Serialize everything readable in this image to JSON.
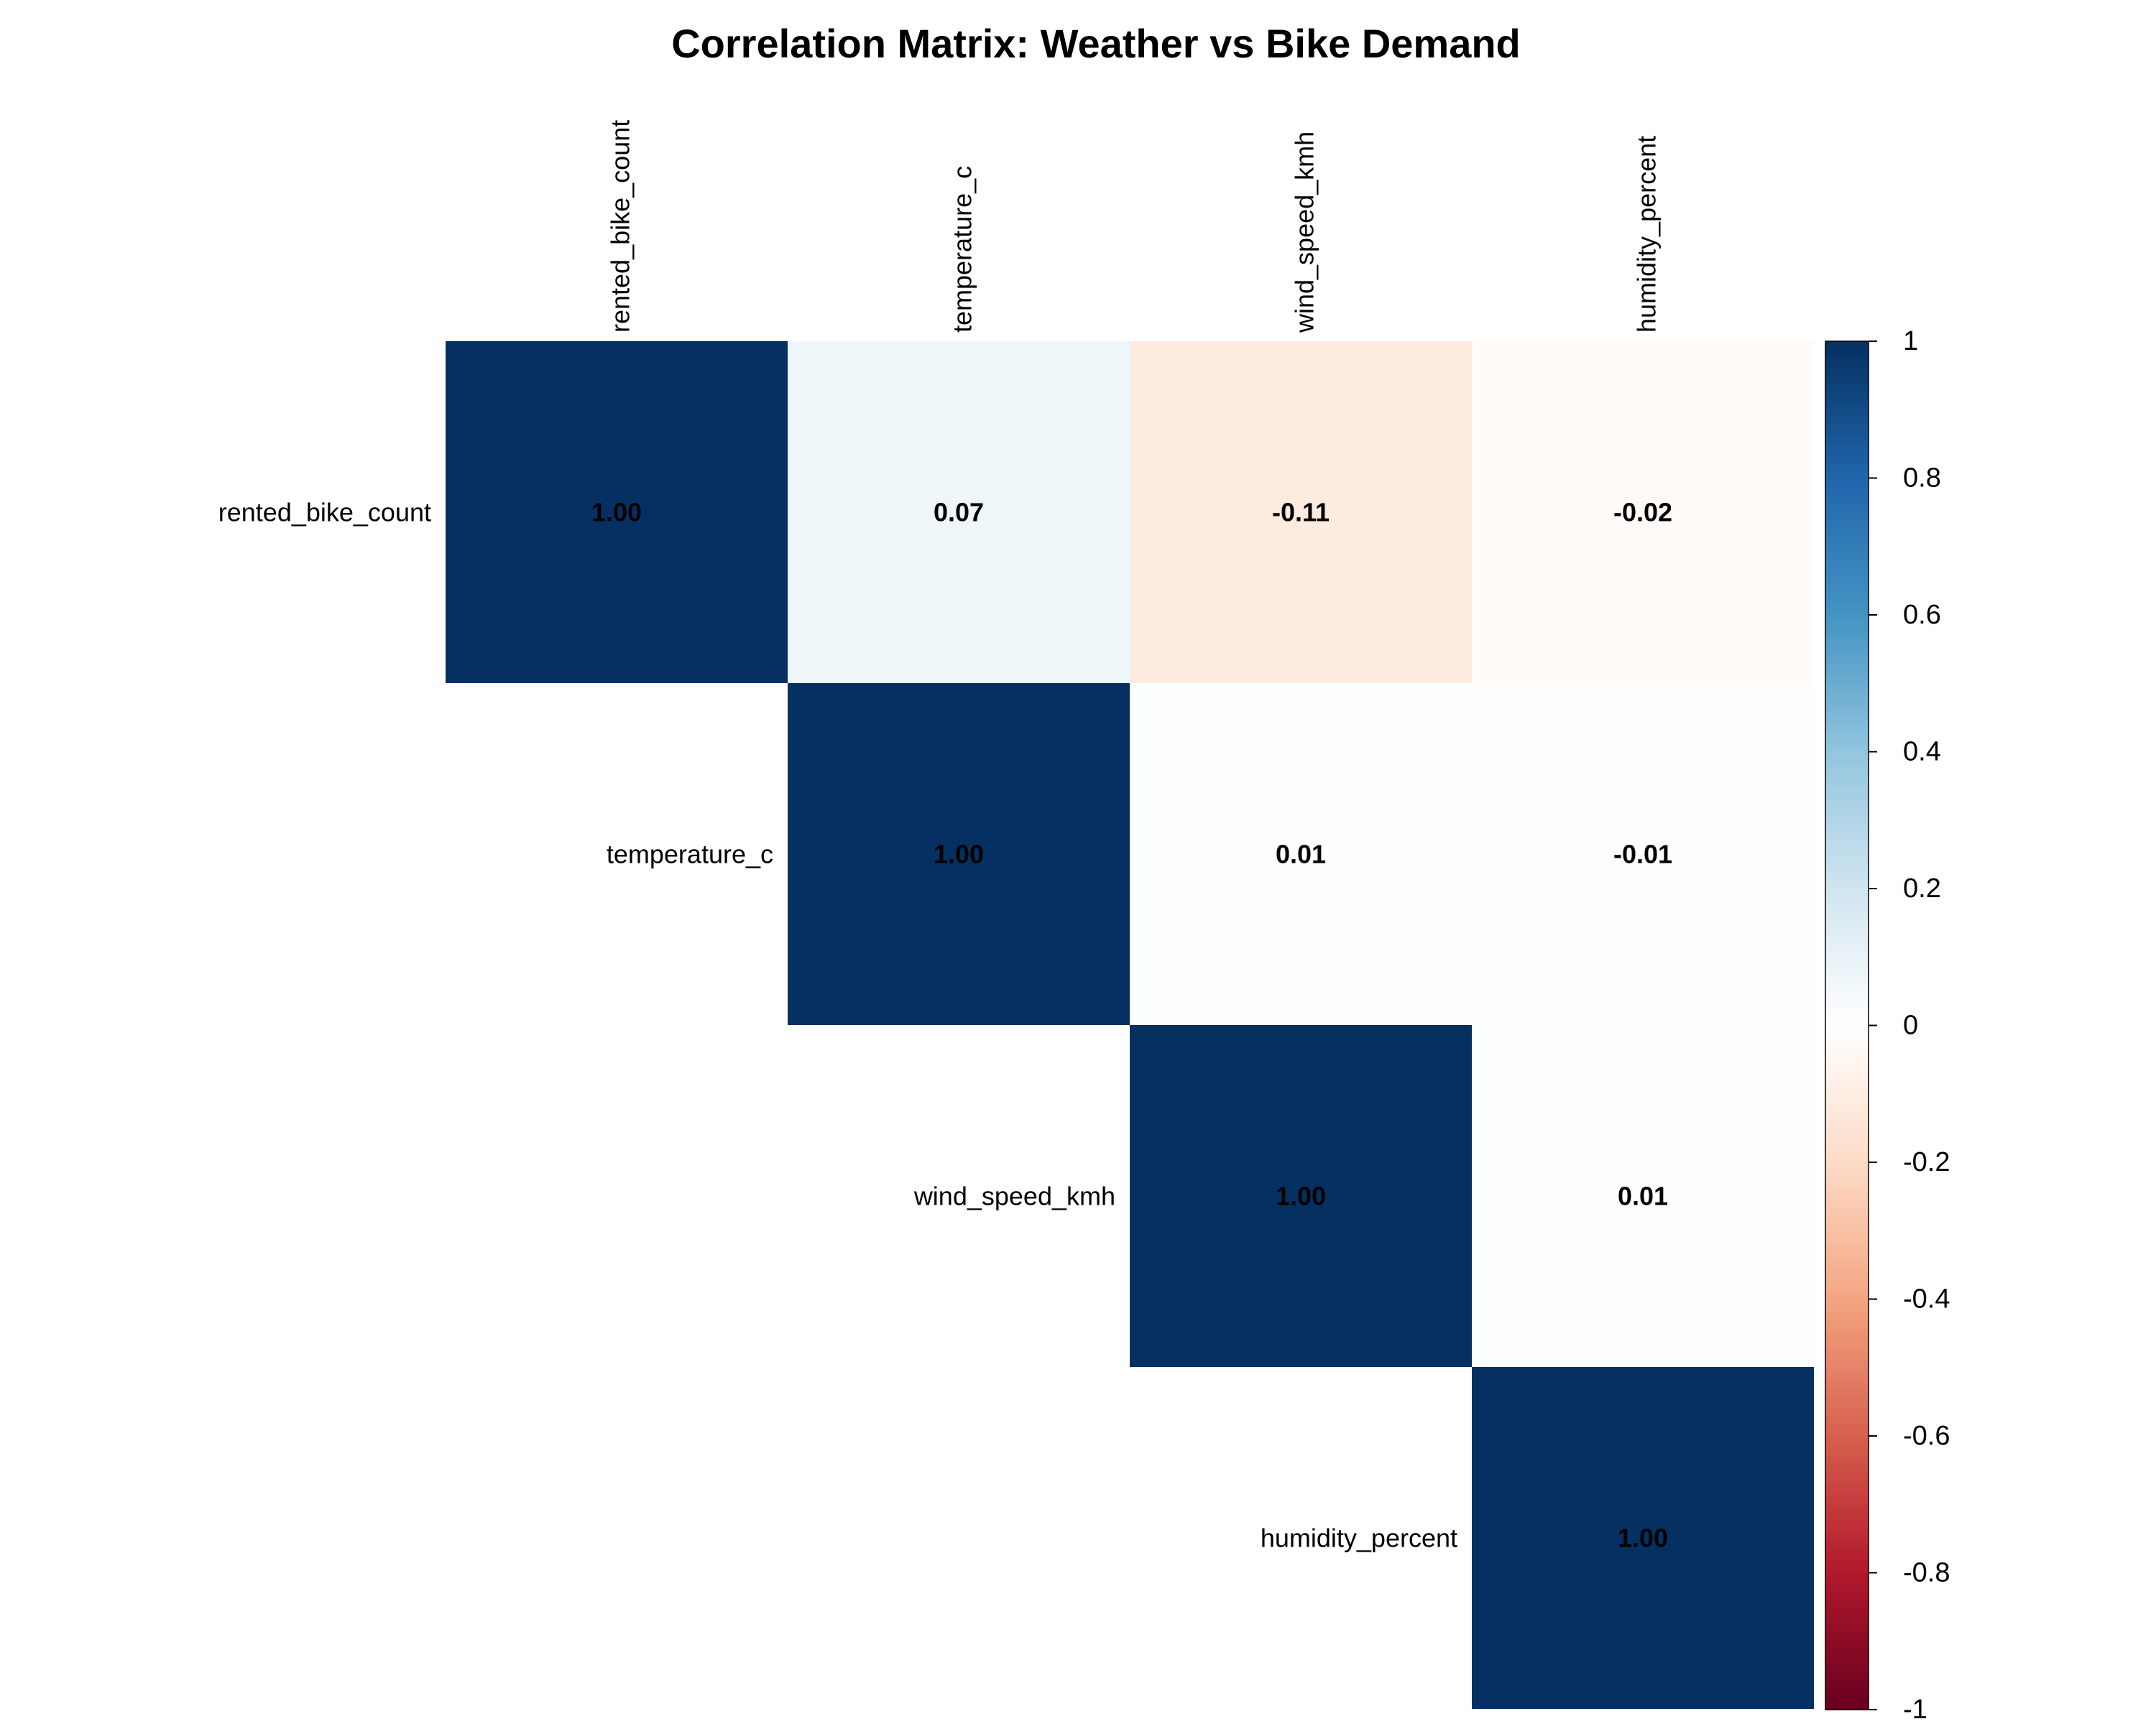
{
  "chart_data": {
    "type": "heatmap",
    "title": "Correlation Matrix: Weather vs Bike Demand",
    "variables": [
      "rented_bike_count",
      "temperature_c",
      "wind_speed_kmh",
      "humidity_percent"
    ],
    "layout": "upper-triangle",
    "matrix": [
      [
        1.0,
        0.07,
        -0.11,
        -0.02
      ],
      [
        null,
        1.0,
        0.01,
        -0.01
      ],
      [
        null,
        null,
        1.0,
        0.01
      ],
      [
        null,
        null,
        null,
        1.0
      ]
    ],
    "value_labels": [
      [
        "1.00",
        "0.07",
        "-0.11",
        "-0.02"
      ],
      [
        null,
        "1.00",
        "0.01",
        "-0.01"
      ],
      [
        null,
        null,
        "1.00",
        "0.01"
      ],
      [
        null,
        null,
        null,
        "1.00"
      ]
    ],
    "color_scale": {
      "range": [
        -1,
        1
      ],
      "ticks": [
        "1",
        "0.8",
        "0.6",
        "0.4",
        "0.2",
        "0",
        "-0.2",
        "-0.4",
        "-0.6",
        "-0.8",
        "-1"
      ],
      "colors": [
        "#67001F",
        "#B2182B",
        "#D6604D",
        "#F4A582",
        "#FDDBC7",
        "#FFFFFF",
        "#D1E5F0",
        "#92C5DE",
        "#4393C3",
        "#2166AC",
        "#053061"
      ]
    }
  }
}
